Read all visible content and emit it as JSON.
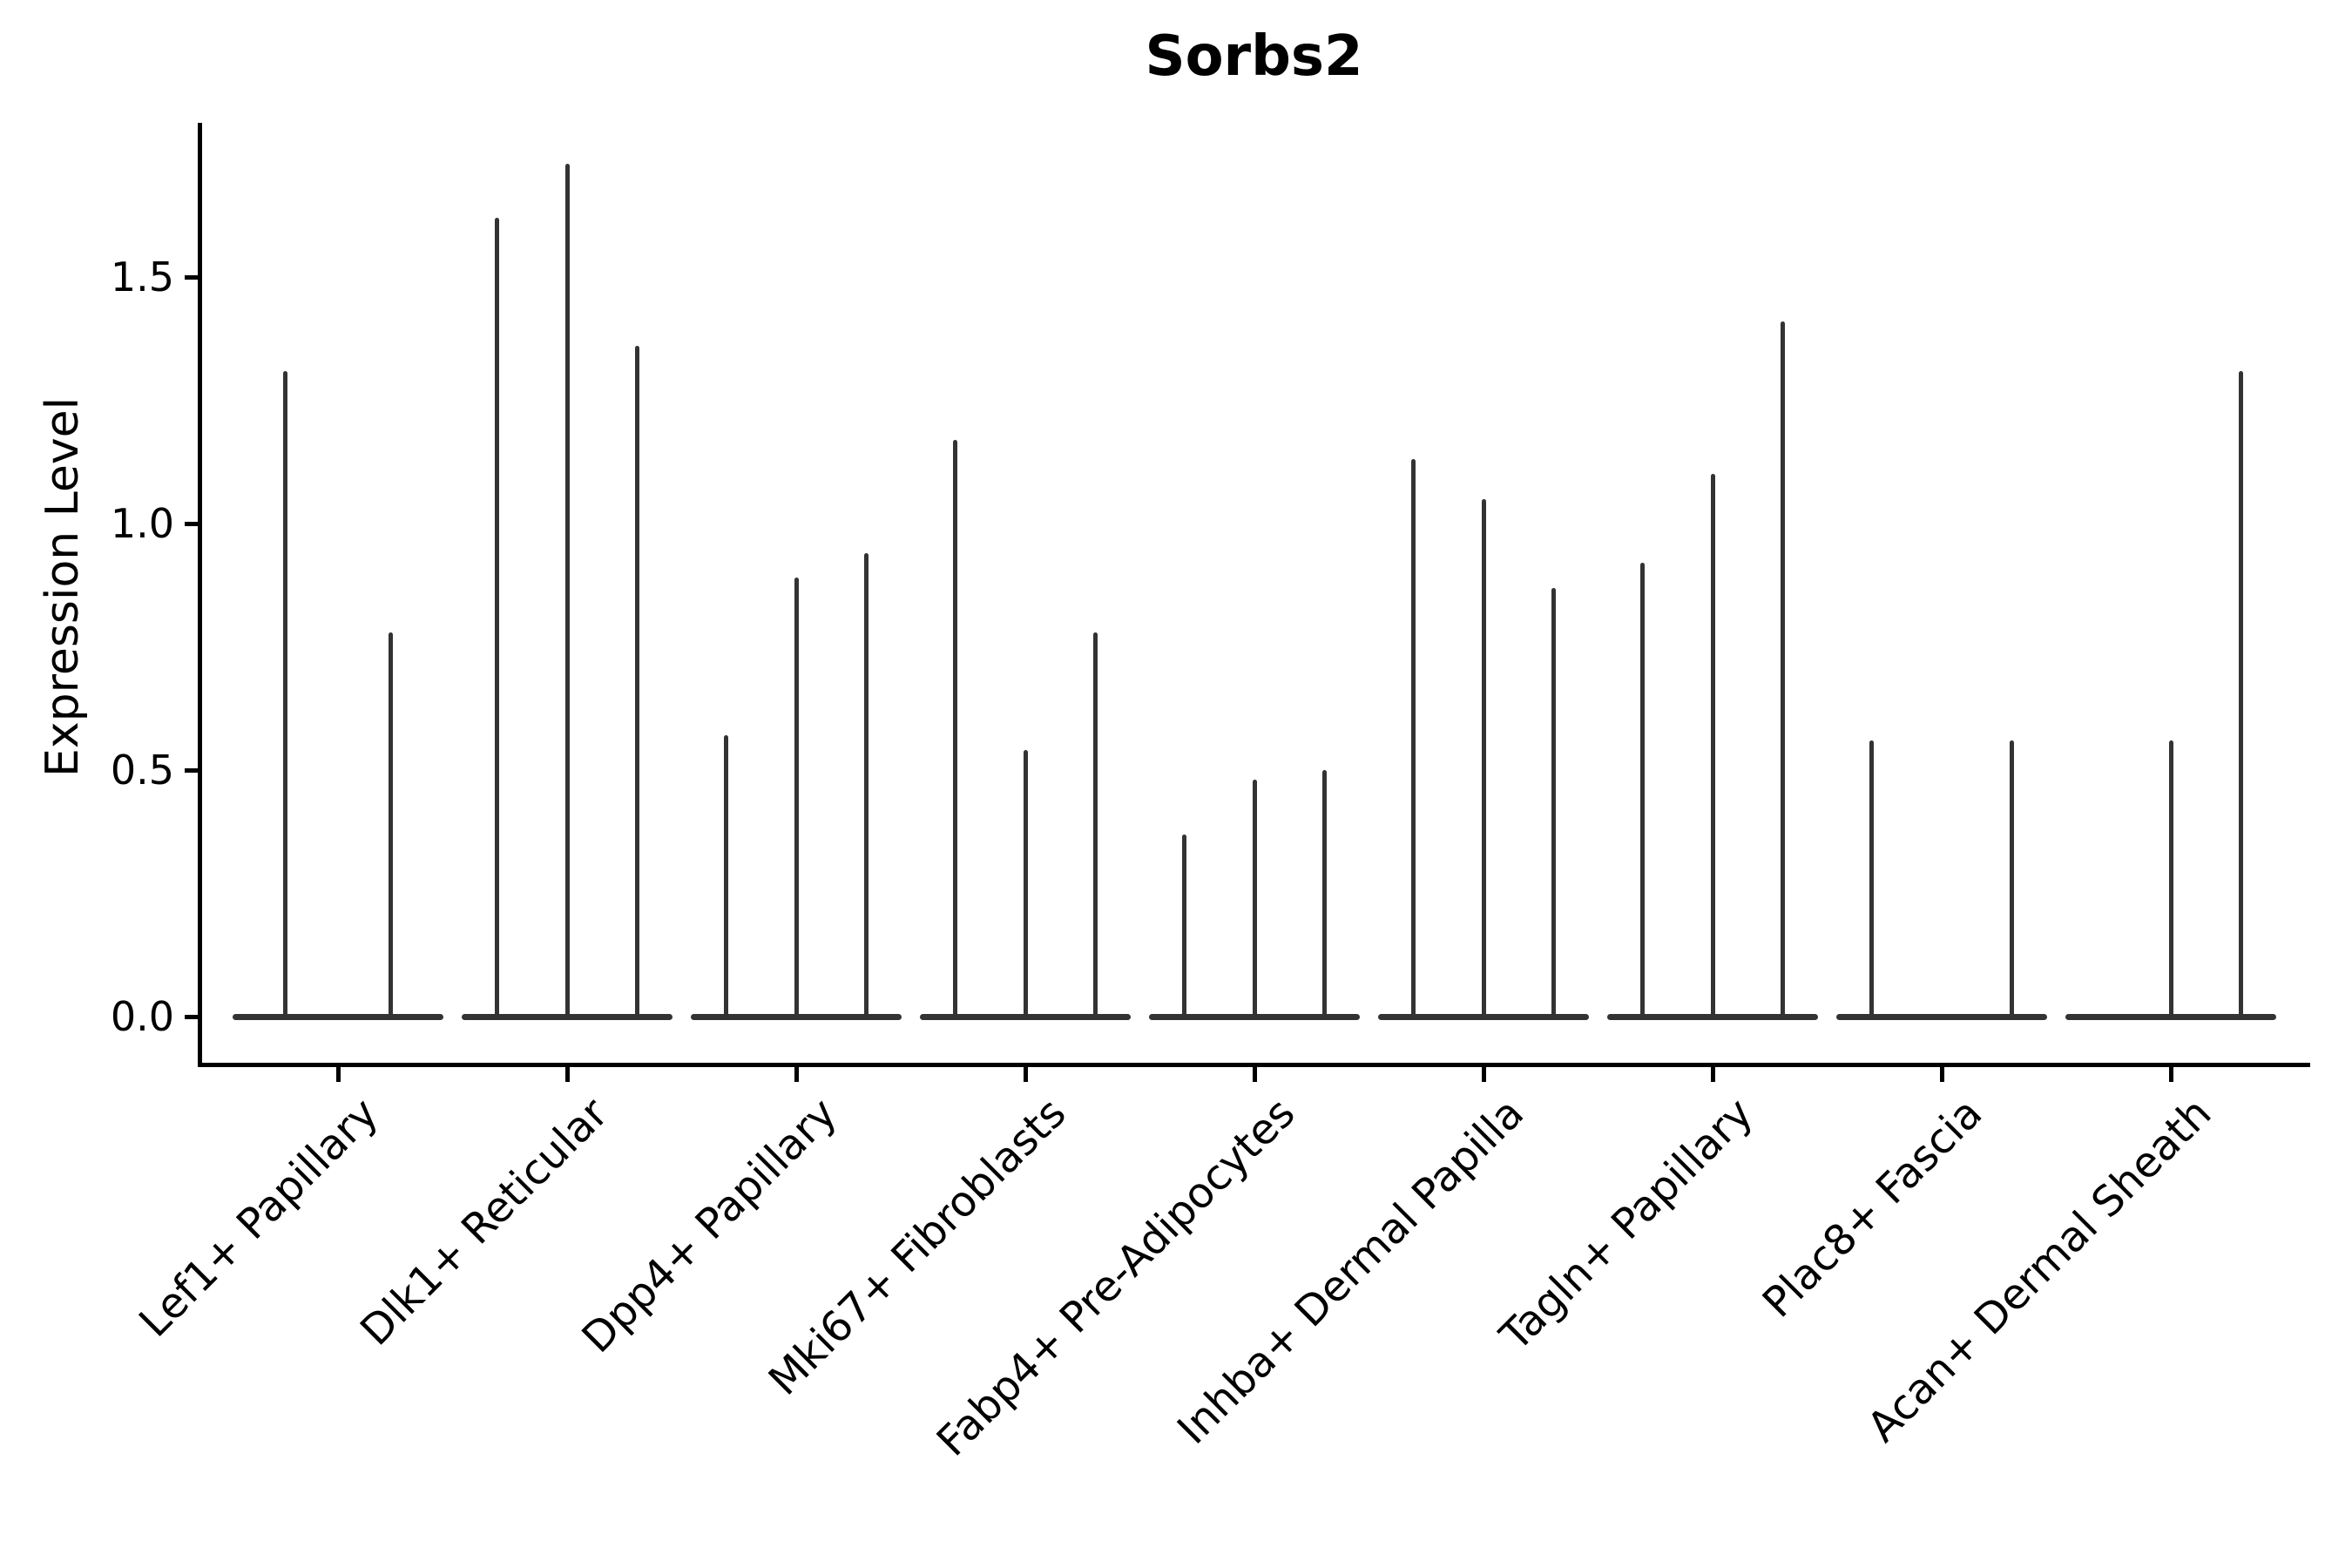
{
  "chart_data": {
    "type": "violin",
    "title": "Sorbs2",
    "ylabel": "Expression Level",
    "xlabel": "",
    "yticks": [
      {
        "label": "0.0",
        "value": 0.0
      },
      {
        "label": "0.5",
        "value": 0.5
      },
      {
        "label": "1.0",
        "value": 1.0
      },
      {
        "label": "1.5",
        "value": 1.5
      }
    ],
    "ylim": [
      -0.1,
      1.81
    ],
    "grid": false,
    "legend": "none",
    "categories": [
      "Lef1+ Papillary",
      "Dlk1+ Reticular",
      "Dpp4+ Papillary",
      "Mki67+ Fibroblasts",
      "Fabp4+ Pre-Adipocytes",
      "Inhba+ Dermal Papilla",
      "Tagln+ Papillary",
      "Plac8+ Fascia",
      "Acan+ Dermal Sheath"
    ],
    "groups": [
      {
        "category": "Lef1+ Papillary",
        "violins": [
          {
            "slot": 0.25,
            "max": 1.31
          },
          {
            "slot": 0.75,
            "max": 0.78
          }
        ]
      },
      {
        "category": "Dlk1+ Reticular",
        "violins": [
          {
            "slot": 0.1667,
            "max": 1.62
          },
          {
            "slot": 0.5,
            "max": 1.73
          },
          {
            "slot": 0.8333,
            "max": 1.36
          }
        ]
      },
      {
        "category": "Dpp4+ Papillary",
        "violins": [
          {
            "slot": 0.1667,
            "max": 0.57
          },
          {
            "slot": 0.5,
            "max": 0.89
          },
          {
            "slot": 0.8333,
            "max": 0.94
          }
        ]
      },
      {
        "category": "Mki67+ Fibroblasts",
        "violins": [
          {
            "slot": 0.1667,
            "max": 1.17
          },
          {
            "slot": 0.5,
            "max": 0.54
          },
          {
            "slot": 0.8333,
            "max": 0.78
          }
        ]
      },
      {
        "category": "Fabp4+ Pre-Adipocytes",
        "violins": [
          {
            "slot": 0.1667,
            "max": 0.37
          },
          {
            "slot": 0.5,
            "max": 0.48
          },
          {
            "slot": 0.8333,
            "max": 0.5
          }
        ]
      },
      {
        "category": "Inhba+ Dermal Papilla",
        "violins": [
          {
            "slot": 0.1667,
            "max": 1.13
          },
          {
            "slot": 0.5,
            "max": 1.05
          },
          {
            "slot": 0.8333,
            "max": 0.87
          }
        ]
      },
      {
        "category": "Tagln+ Papillary",
        "violins": [
          {
            "slot": 0.1667,
            "max": 0.92
          },
          {
            "slot": 0.5,
            "max": 1.1
          },
          {
            "slot": 0.8333,
            "max": 1.41
          }
        ]
      },
      {
        "category": "Plac8+ Fascia",
        "violins": [
          {
            "slot": 0.1667,
            "max": 0.56
          },
          {
            "slot": 0.5,
            "max": 0.0
          },
          {
            "slot": 0.8333,
            "max": 0.56
          }
        ]
      },
      {
        "category": "Acan+ Dermal Sheath",
        "violins": [
          {
            "slot": 0.1667,
            "max": 0.0
          },
          {
            "slot": 0.5,
            "max": 0.56
          },
          {
            "slot": 0.8333,
            "max": 1.31
          }
        ]
      }
    ],
    "style": {
      "violin_color": "#333333",
      "axis_color": "#000000",
      "background_color": "#ffffff",
      "text_color": "#000000"
    }
  }
}
